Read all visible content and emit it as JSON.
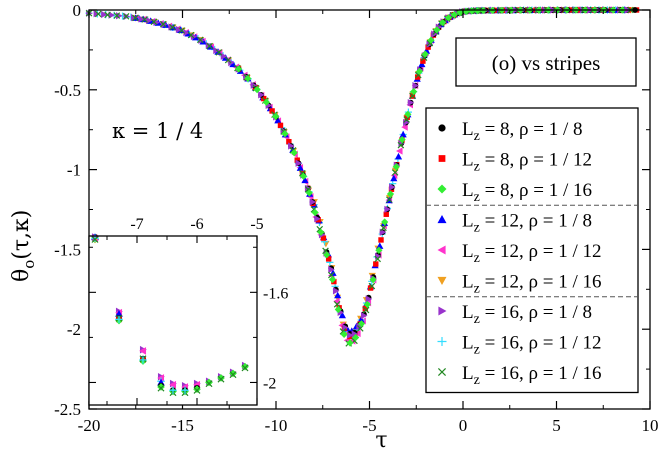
{
  "chart_data": [
    {
      "type": "scatter",
      "name": "main",
      "xlabel": "τ",
      "ylabel_main": "θ",
      "ylabel_sub": "o",
      "ylabel_args": "(τ,κ)",
      "xlim": [
        -20,
        10
      ],
      "ylim": [
        -2.5,
        0
      ],
      "xticks": [
        -20,
        -15,
        -10,
        -5,
        0,
        5,
        10
      ],
      "yticks": [
        0,
        -0.5,
        -1,
        -1.5,
        -2,
        -2.5
      ],
      "xtick_labels": [
        "-20",
        "-15",
        "-10",
        "-5",
        "0",
        "5",
        "10"
      ],
      "ytick_labels": [
        "0",
        "-0.5",
        "-1",
        "-1.5",
        "-2",
        "-2.5"
      ],
      "annotation": "κ = 1 / 4",
      "boxed_title": "(o) vs stripes",
      "series": [
        {
          "name": "L_z = 8, ρ = 1 / 8",
          "sub": "z",
          "label_pre": "L",
          "label_post": " = 8, ρ = 1 / 8",
          "color": "#000000",
          "marker": "circle"
        },
        {
          "name": "L_z = 8, ρ = 1 / 12",
          "sub": "z",
          "label_pre": "L",
          "label_post": " = 8, ρ = 1 / 12",
          "color": "#ff0000",
          "marker": "square"
        },
        {
          "name": "L_z = 8, ρ = 1 / 16",
          "sub": "z",
          "label_pre": "L",
          "label_post": " = 8, ρ = 1 / 16",
          "color": "#33ee33",
          "marker": "diamond"
        },
        {
          "name": "L_z = 12, ρ = 1 / 8",
          "sub": "z",
          "label_pre": "L",
          "label_post": " = 12, ρ = 1 / 8",
          "color": "#0000ff",
          "marker": "triangle-up"
        },
        {
          "name": "L_z = 12, ρ = 1 / 12",
          "sub": "z",
          "label_pre": "L",
          "label_post": " = 12, ρ = 1 / 12",
          "color": "#ff33cc",
          "marker": "triangle-left"
        },
        {
          "name": "L_z = 12, ρ = 1 / 16",
          "sub": "z",
          "label_pre": "L",
          "label_post": " = 12, ρ = 1 / 16",
          "color": "#f0a020",
          "marker": "triangle-down"
        },
        {
          "name": "L_z = 16, ρ = 1 / 8",
          "sub": "z",
          "label_pre": "L",
          "label_post": " = 16, ρ = 1 / 8",
          "color": "#9933cc",
          "marker": "triangle-right"
        },
        {
          "name": "L_z = 16, ρ = 1 / 12",
          "sub": "z",
          "label_pre": "L",
          "label_post": " = 16, ρ = 1 / 12",
          "color": "#33ddff",
          "marker": "plus"
        },
        {
          "name": "L_z = 16, ρ = 1 / 16",
          "sub": "z",
          "label_pre": "L",
          "label_post": " = 16, ρ = 1 / 16",
          "color": "#228822",
          "marker": "cross"
        }
      ],
      "curve": {
        "description": "scaling function sampled points (approx.)",
        "x": [
          -20,
          -19,
          -18,
          -17,
          -16,
          -15,
          -14,
          -13,
          -12,
          -11.5,
          -11,
          -10.5,
          -10,
          -9.5,
          -9,
          -8.5,
          -8,
          -7.5,
          -7,
          -6.8,
          -6.6,
          -6.4,
          -6.2,
          -6,
          -5.8,
          -5.5,
          -5.2,
          -5,
          -4.7,
          -4.4,
          -4,
          -3.6,
          -3.2,
          -2.8,
          -2.4,
          -2,
          -1.6,
          -1.2,
          -0.8,
          -0.4,
          0,
          0.5,
          1,
          2,
          3,
          4,
          5,
          6,
          7,
          8,
          9,
          9.5
        ],
        "y": [
          -0.02,
          -0.03,
          -0.04,
          -0.06,
          -0.09,
          -0.13,
          -0.19,
          -0.27,
          -0.37,
          -0.43,
          -0.5,
          -0.58,
          -0.67,
          -0.78,
          -0.9,
          -1.05,
          -1.22,
          -1.42,
          -1.66,
          -1.78,
          -1.9,
          -2.0,
          -2.06,
          -2.07,
          -2.05,
          -1.98,
          -1.87,
          -1.78,
          -1.62,
          -1.45,
          -1.22,
          -1.0,
          -0.78,
          -0.58,
          -0.41,
          -0.27,
          -0.16,
          -0.09,
          -0.05,
          -0.025,
          -0.01,
          -0.005,
          -0.003,
          -0.002,
          -0.001,
          -0.001,
          0,
          0,
          0,
          0,
          0,
          0
        ]
      }
    },
    {
      "type": "scatter",
      "name": "inset",
      "xlim": [
        -7.8,
        -5
      ],
      "ylim": [
        -2.1,
        -1.35
      ],
      "xticks": [
        -7,
        -6,
        -5
      ],
      "xtick_labels": [
        "-7",
        "-6",
        "-5"
      ],
      "yticks": [
        -1.6,
        -2
      ],
      "ytick_labels": [
        "-1.6",
        "-2"
      ],
      "points": [
        {
          "x": -7.7,
          "y": -1.36,
          "series": [
            0,
            1,
            2,
            3,
            4,
            5,
            6,
            7,
            8
          ]
        },
        {
          "x": -7.3,
          "y": -1.69,
          "series": [
            6,
            4,
            3
          ]
        },
        {
          "x": -7.3,
          "y": -1.72,
          "series": [
            0,
            1,
            2,
            8,
            7
          ]
        },
        {
          "x": -6.9,
          "y": -1.86,
          "series": [
            6,
            4
          ]
        },
        {
          "x": -6.9,
          "y": -1.9,
          "series": [
            0,
            1,
            2,
            8,
            7
          ]
        },
        {
          "x": -6.6,
          "y": -1.98,
          "series": [
            6,
            4
          ]
        },
        {
          "x": -6.6,
          "y": -2.0,
          "series": [
            7,
            3
          ]
        },
        {
          "x": -6.6,
          "y": -2.02,
          "series": [
            0,
            2,
            8
          ]
        },
        {
          "x": -6.4,
          "y": -2.01,
          "series": [
            6,
            4
          ]
        },
        {
          "x": -6.4,
          "y": -2.04,
          "series": [
            0,
            2,
            8,
            7
          ]
        },
        {
          "x": -6.2,
          "y": -2.02,
          "series": [
            6,
            4
          ]
        },
        {
          "x": -6.2,
          "y": -2.04,
          "series": [
            0,
            2,
            8,
            7
          ]
        },
        {
          "x": -6.0,
          "y": -2.01,
          "series": [
            6,
            4
          ]
        },
        {
          "x": -6.0,
          "y": -2.03,
          "series": [
            0,
            2,
            8
          ]
        },
        {
          "x": -5.8,
          "y": -2.0,
          "series": [
            6,
            2,
            8
          ]
        },
        {
          "x": -5.6,
          "y": -1.98,
          "series": [
            6,
            2,
            8
          ]
        },
        {
          "x": -5.4,
          "y": -1.96,
          "series": [
            6,
            2,
            8
          ]
        },
        {
          "x": -5.2,
          "y": -1.93,
          "series": [
            6,
            2,
            8
          ]
        },
        {
          "x": -5.0,
          "y": -1.9,
          "series": [
            6,
            2,
            8
          ]
        }
      ]
    }
  ]
}
